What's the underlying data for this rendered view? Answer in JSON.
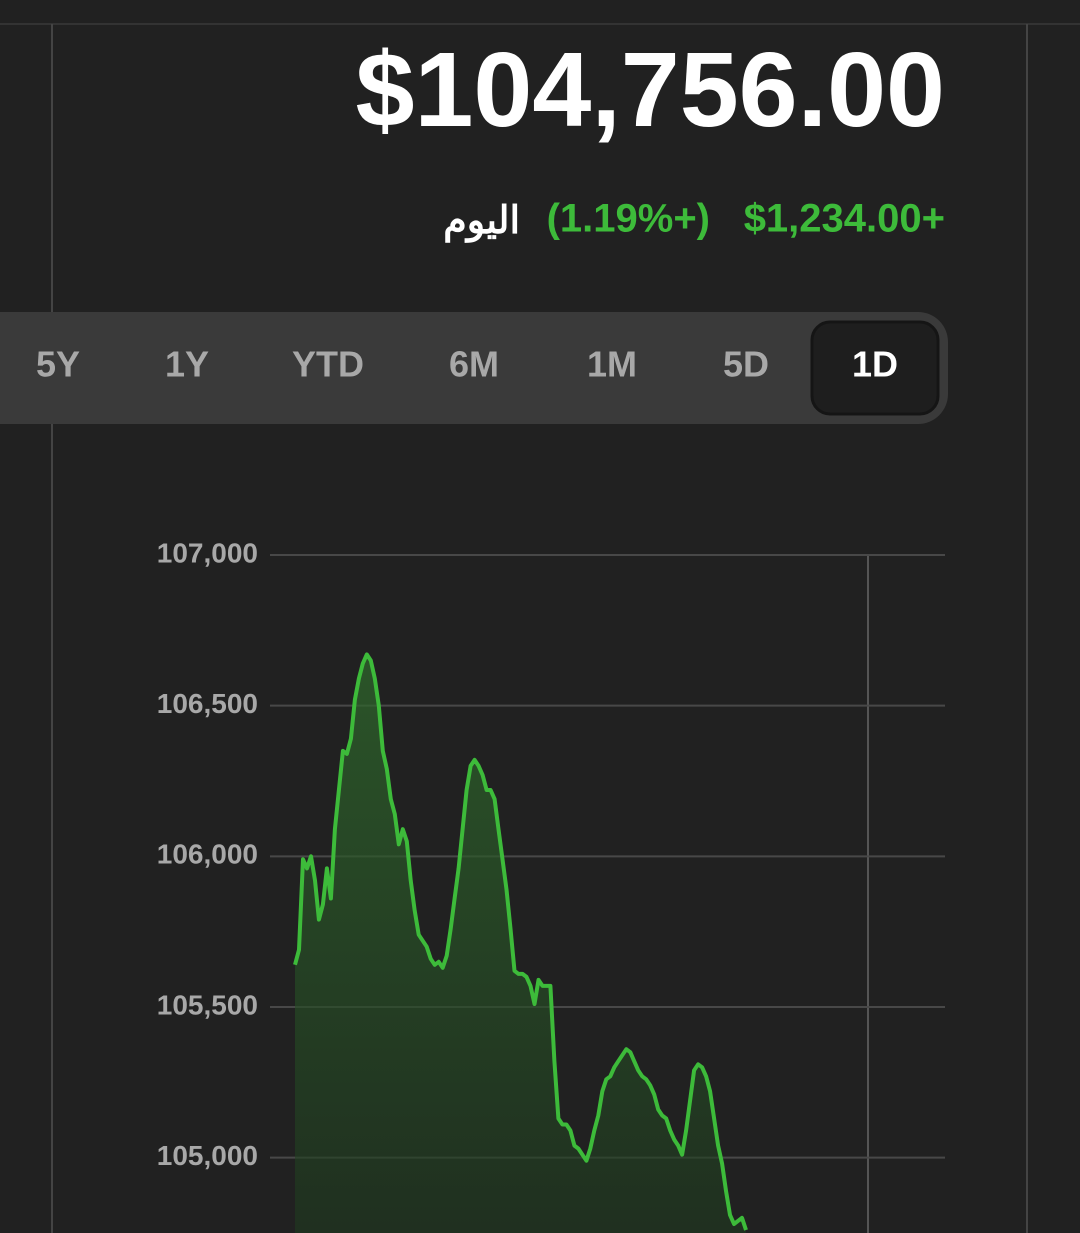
{
  "header": {
    "price": "$104,756.00",
    "change": "$1,234.00+",
    "change_percent": "(1.19%+)",
    "period": "اليوم"
  },
  "tabs": [
    "5Y",
    "1Y",
    "YTD",
    "6M",
    "1M",
    "5D",
    "1D"
  ],
  "selected_tab": "1D",
  "chart_data": {
    "type": "area",
    "color": "#3dbb3a",
    "grid": true,
    "ylim": [
      104750,
      107000
    ],
    "yticks": [
      {
        "value": 105000,
        "label": "105,000"
      },
      {
        "value": 105500,
        "label": "105,500"
      },
      {
        "value": 106000,
        "label": "106,000"
      },
      {
        "value": 106500,
        "label": "106,500"
      },
      {
        "value": 107000,
        "label": "107,000"
      }
    ],
    "values": [
      105640,
      105690,
      105990,
      105960,
      106000,
      105920,
      105790,
      105840,
      105960,
      105860,
      106090,
      106220,
      106350,
      106340,
      106390,
      106520,
      106590,
      106640,
      106670,
      106650,
      106590,
      106500,
      106350,
      106290,
      106190,
      106140,
      106040,
      106090,
      106050,
      105920,
      105820,
      105740,
      105720,
      105700,
      105660,
      105640,
      105650,
      105630,
      105670,
      105760,
      105860,
      105960,
      106090,
      106220,
      106300,
      106320,
      106300,
      106270,
      106220,
      106220,
      106190,
      106090,
      105990,
      105890,
      105760,
      105620,
      105610,
      105610,
      105600,
      105570,
      105510,
      105590,
      105570,
      105570,
      105570,
      105320,
      105130,
      105110,
      105110,
      105090,
      105040,
      105030,
      105010,
      104990,
      105030,
      105090,
      105140,
      105220,
      105260,
      105270,
      105300,
      105320,
      105340,
      105360,
      105350,
      105320,
      105290,
      105270,
      105260,
      105240,
      105210,
      105160,
      105140,
      105130,
      105090,
      105060,
      105040,
      105010,
      105090,
      105190,
      105290,
      105310,
      105300,
      105270,
      105220,
      105130,
      105040,
      104980,
      104890,
      104810,
      104780,
      104790,
      104800,
      104760
    ]
  }
}
